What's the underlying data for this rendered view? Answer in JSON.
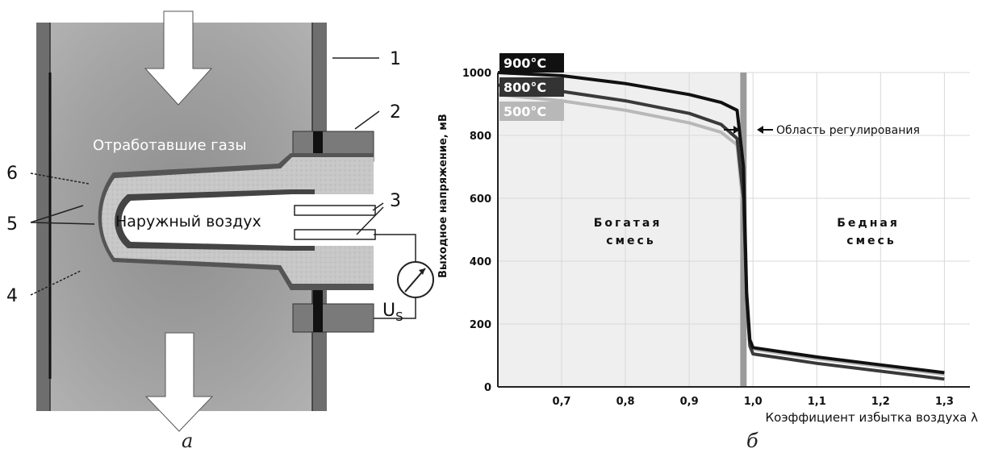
{
  "diagram": {
    "exhaust_label": "Отработавшие газы",
    "air_label": "Наружный воздух",
    "voltage_symbol": "U",
    "voltage_subscript": "S",
    "callouts": [
      "1",
      "2",
      "3",
      "4",
      "5",
      "6"
    ],
    "caption": "а"
  },
  "chart_caption": "б",
  "chart_data": {
    "type": "line",
    "xlabel": "Коэффициент избытка воздуха λ",
    "ylabel": "Выходное напряжение, мВ",
    "xlim": [
      0.6,
      1.34
    ],
    "ylim": [
      0,
      1000
    ],
    "x_ticks": [
      "0,7",
      "0,8",
      "0,9",
      "1,0",
      "1,1",
      "1,2",
      "1,3"
    ],
    "x_tick_values": [
      0.7,
      0.8,
      0.9,
      1.0,
      1.1,
      1.2,
      1.3
    ],
    "y_ticks": [
      0,
      200,
      400,
      600,
      800,
      1000
    ],
    "regulation_band": [
      0.98,
      0.99
    ],
    "regulation_label": "Область регулирования",
    "rich_label": [
      "Богатая",
      "смесь"
    ],
    "lean_label": [
      "Бедная",
      "смесь"
    ],
    "series": [
      {
        "name": "900°C",
        "color": "#111111",
        "points": [
          [
            0.6,
            1000
          ],
          [
            0.7,
            990
          ],
          [
            0.8,
            965
          ],
          [
            0.9,
            930
          ],
          [
            0.95,
            905
          ],
          [
            0.975,
            880
          ],
          [
            0.985,
            700
          ],
          [
            0.99,
            300
          ],
          [
            0.995,
            150
          ],
          [
            1.0,
            125
          ],
          [
            1.05,
            110
          ],
          [
            1.1,
            95
          ],
          [
            1.2,
            70
          ],
          [
            1.3,
            45
          ]
        ]
      },
      {
        "name": "800°C",
        "color": "#3a3a3a",
        "points": [
          [
            0.6,
            960
          ],
          [
            0.7,
            940
          ],
          [
            0.8,
            910
          ],
          [
            0.9,
            870
          ],
          [
            0.95,
            835
          ],
          [
            0.975,
            790
          ],
          [
            0.985,
            600
          ],
          [
            0.99,
            280
          ],
          [
            0.995,
            130
          ],
          [
            1.0,
            105
          ],
          [
            1.05,
            90
          ],
          [
            1.1,
            75
          ],
          [
            1.2,
            50
          ],
          [
            1.3,
            25
          ]
        ]
      },
      {
        "name": "500°C",
        "color": "#b8b8b8",
        "points": [
          [
            0.6,
            930
          ],
          [
            0.7,
            910
          ],
          [
            0.8,
            880
          ],
          [
            0.9,
            840
          ],
          [
            0.95,
            810
          ],
          [
            0.975,
            770
          ],
          [
            0.985,
            560
          ],
          [
            0.99,
            260
          ],
          [
            0.995,
            140
          ],
          [
            1.0,
            120
          ],
          [
            1.05,
            105
          ],
          [
            1.1,
            90
          ],
          [
            1.2,
            65
          ],
          [
            1.3,
            40
          ]
        ]
      }
    ]
  }
}
